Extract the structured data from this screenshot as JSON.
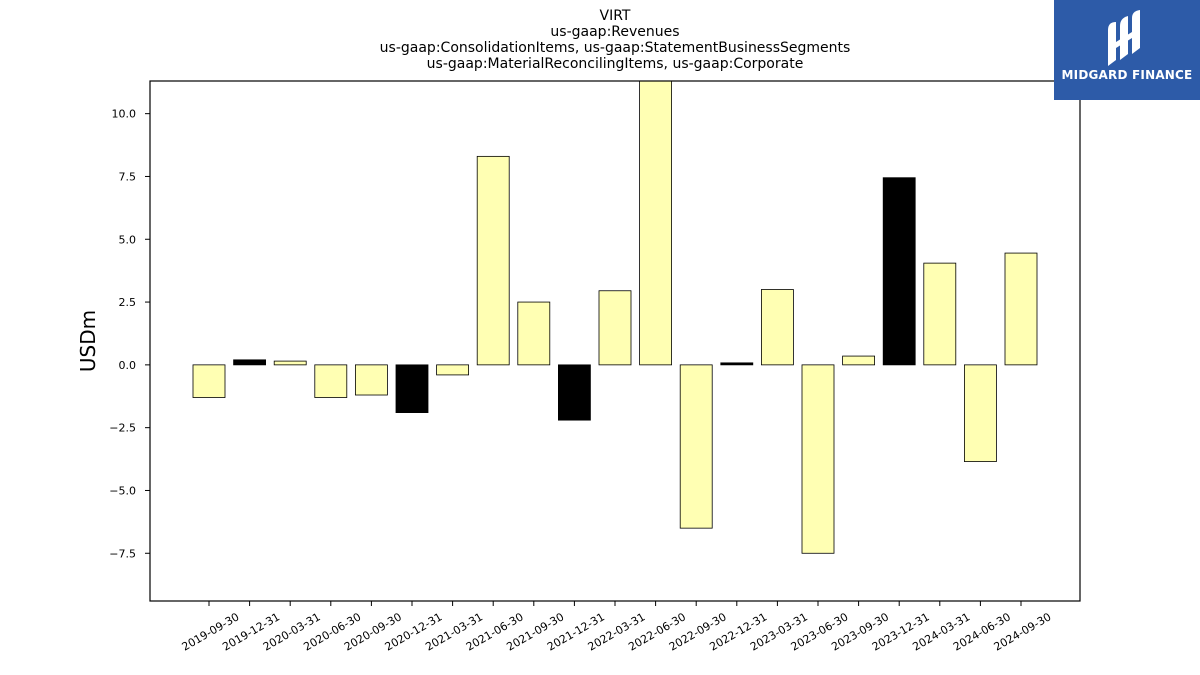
{
  "chart_data": {
    "type": "bar",
    "title_lines": [
      "VIRT",
      "us-gaap:Revenues",
      "us-gaap:ConsolidationItems, us-gaap:StatementBusinessSegments",
      "us-gaap:MaterialReconcilingItems, us-gaap:Corporate"
    ],
    "ylabel": "USDm",
    "xlabel": "",
    "ylim": [
      -9.4,
      11.3
    ],
    "yticks": [
      -7.5,
      -5.0,
      -2.5,
      0.0,
      2.5,
      5.0,
      7.5,
      10.0
    ],
    "ytick_labels": [
      "−7.5",
      "−5.0",
      "−2.5",
      "0.0",
      "2.5",
      "5.0",
      "7.5",
      "10.0"
    ],
    "categories": [
      "2019-09-30",
      "2019-12-31",
      "2020-03-31",
      "2020-06-30",
      "2020-09-30",
      "2020-12-31",
      "2021-03-31",
      "2021-06-30",
      "2021-09-30",
      "2021-12-31",
      "2022-03-31",
      "2022-06-30",
      "2022-09-30",
      "2022-12-31",
      "2023-03-31",
      "2023-06-30",
      "2023-09-30",
      "2023-12-31",
      "2024-03-31",
      "2024-06-30",
      "2024-09-30"
    ],
    "values": [
      -1.3,
      0.2,
      0.15,
      -1.3,
      -1.2,
      -1.9,
      -0.4,
      8.3,
      2.5,
      -2.2,
      2.95,
      11.3,
      -6.5,
      0.08,
      3.0,
      -7.5,
      0.35,
      7.45,
      4.05,
      -3.85,
      4.45
    ],
    "bar_colors": [
      "#ffffb3",
      "#000000",
      "#ffffb3",
      "#ffffb3",
      "#ffffb3",
      "#000000",
      "#ffffb3",
      "#ffffb3",
      "#ffffb3",
      "#000000",
      "#ffffb3",
      "#ffffb3",
      "#ffffb3",
      "#000000",
      "#ffffb3",
      "#ffffb3",
      "#ffffb3",
      "#000000",
      "#ffffb3",
      "#ffffb3",
      "#ffffb3"
    ],
    "grid": false,
    "legend": "none"
  },
  "logo": {
    "text": "MIDGARD FINANCE",
    "color": "#2d5ba8"
  }
}
